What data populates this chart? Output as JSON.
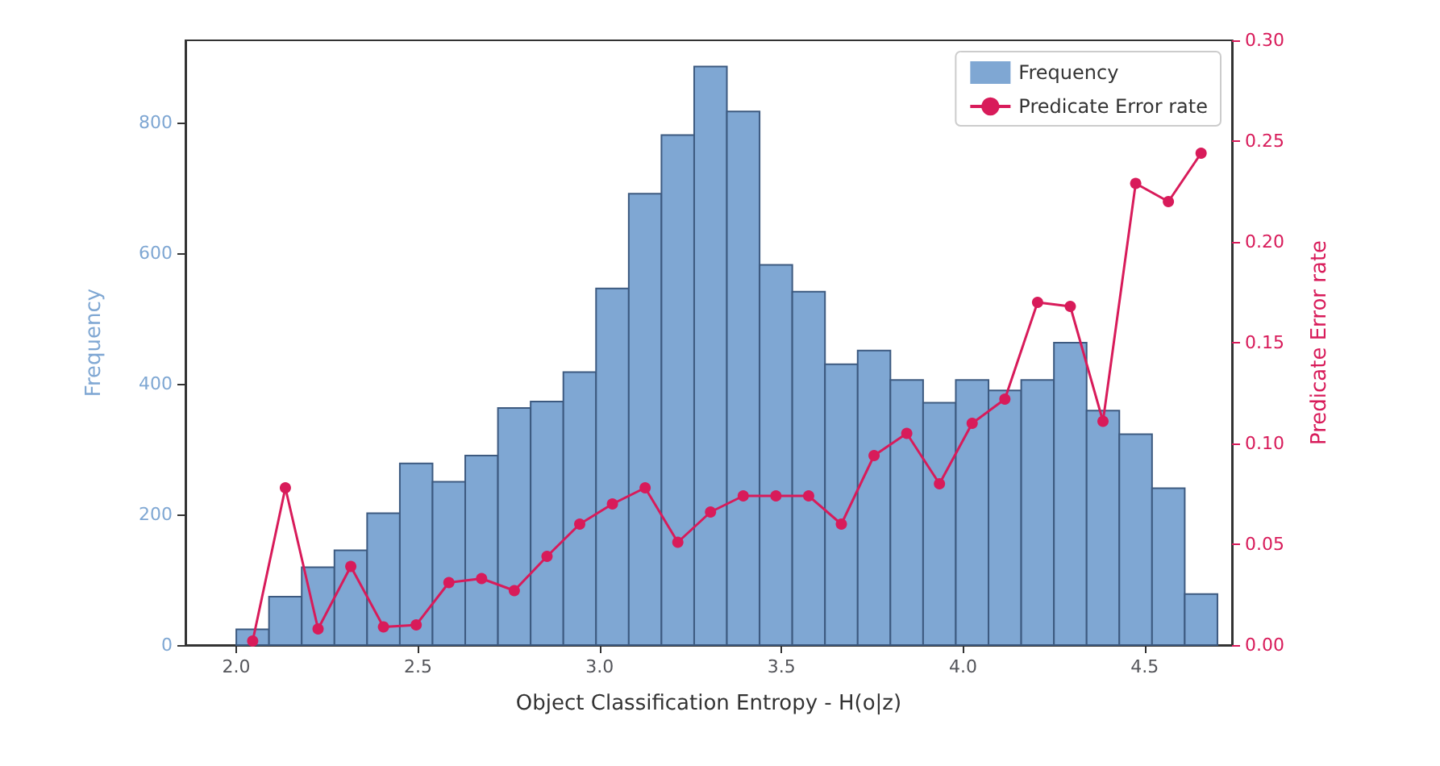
{
  "chart_data": {
    "type": "histogram",
    "xlabel": "Object Classification Entropy - H(o|z)",
    "ylabel": "Frequency",
    "y2label": "Predicate Error rate",
    "xlim": [
      1.86,
      4.74
    ],
    "xticks": [
      {
        "value": 2,
        "label": "2.0"
      },
      {
        "value": 2.5,
        "label": "2.5"
      },
      {
        "value": 3,
        "label": "3.0"
      },
      {
        "value": 3.5,
        "label": "3.5"
      },
      {
        "value": 4,
        "label": "4.0"
      },
      {
        "value": 4.5,
        "label": "4.5"
      }
    ],
    "ylim": [
      0,
      926
    ],
    "yticks": [
      0,
      200,
      400,
      600,
      800
    ],
    "y2lim": [
      0,
      0.3
    ],
    "y2ticks": [
      {
        "value": 0,
        "label": "0.00"
      },
      {
        "value": 0.05,
        "label": "0.05"
      },
      {
        "value": 0.1,
        "label": "0.10"
      },
      {
        "value": 0.15,
        "label": "0.15"
      },
      {
        "value": 0.2,
        "label": "0.20"
      },
      {
        "value": 0.25,
        "label": "0.25"
      },
      {
        "value": 0.3,
        "label": "0.30"
      }
    ],
    "legend": "top right",
    "marker": "circle",
    "line_style": "solid",
    "series": [
      {
        "type": "histogram",
        "name": "Frequency",
        "color": "#7fa7d3",
        "bins": [
          2.0,
          2.09,
          2.18,
          2.27,
          2.36,
          2.45,
          2.54,
          2.63,
          2.72,
          2.81,
          2.9,
          2.99,
          3.08,
          3.17,
          3.26,
          3.35,
          3.44,
          3.53,
          3.62,
          3.71,
          3.8,
          3.89,
          3.98,
          4.07,
          4.16,
          4.25,
          4.34,
          4.43,
          4.52,
          4.61,
          4.7
        ],
        "values": [
          24,
          74,
          119,
          145,
          202,
          278,
          250,
          290,
          363,
          373,
          418,
          546,
          691,
          781,
          886,
          817,
          582,
          541,
          430,
          451,
          406,
          371,
          406,
          390,
          406,
          463,
          359,
          323,
          240,
          78
        ]
      },
      {
        "type": "line",
        "name": "Predicate Error rate",
        "color": "#d81b5a",
        "axis": "y2",
        "x": [
          2.045,
          2.135,
          2.225,
          2.315,
          2.405,
          2.495,
          2.585,
          2.675,
          2.765,
          2.855,
          2.945,
          3.035,
          3.125,
          3.215,
          3.305,
          3.395,
          3.485,
          3.575,
          3.665,
          3.755,
          3.845,
          3.935,
          4.025,
          4.115,
          4.205,
          4.295,
          4.385,
          4.475,
          4.565,
          4.655
        ],
        "values": [
          0.002,
          0.078,
          0.008,
          0.039,
          0.009,
          0.01,
          0.031,
          0.033,
          0.027,
          0.044,
          0.06,
          0.07,
          0.078,
          0.051,
          0.066,
          0.074,
          0.074,
          0.074,
          0.06,
          0.094,
          0.105,
          0.08,
          0.11,
          0.122,
          0.17,
          0.168,
          0.111,
          0.229,
          0.22,
          0.244
        ]
      }
    ]
  }
}
